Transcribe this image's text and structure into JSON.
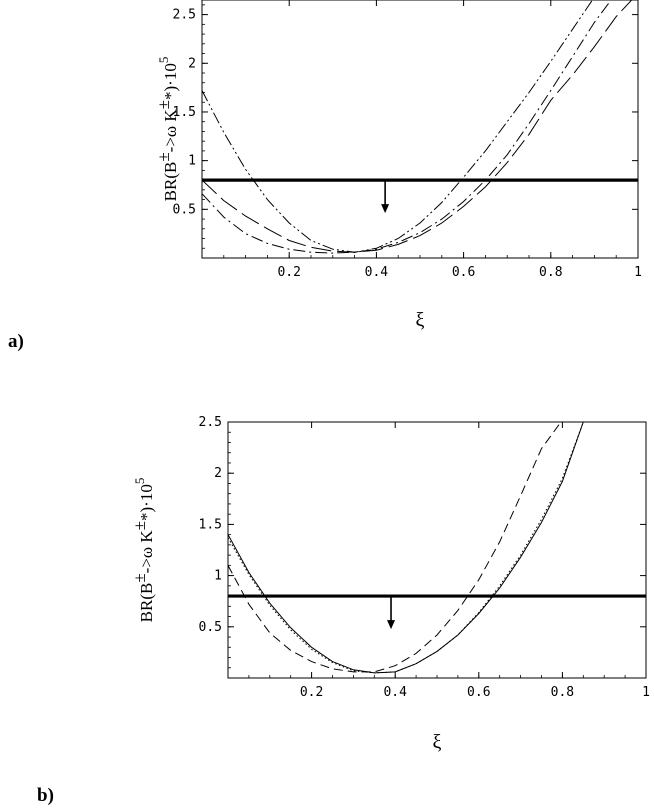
{
  "chart_data": [
    {
      "type": "line",
      "panel_label": "a)",
      "xlabel": "ξ",
      "ylabel": "BR(B±->ω K±*)·10⁵",
      "ylabel_parts": {
        "main": "BR(B",
        "pm1": "±",
        "mid": "->ω K",
        "pm2": "±",
        "tail": "*)·10",
        "exp": "5"
      },
      "xlim": [
        0.0,
        1.0
      ],
      "ylim": [
        0.0,
        2.65
      ],
      "xticks": [
        "0.2",
        "0.4",
        "0.6",
        "0.8",
        "1"
      ],
      "yticks": [
        "0.5",
        "1",
        "1.5",
        "2",
        "2.5"
      ],
      "limit_line": 0.8,
      "arrow_x": 0.42,
      "series": [
        {
          "style": "long-dash",
          "x": [
            0.0,
            0.05,
            0.1,
            0.15,
            0.2,
            0.25,
            0.3,
            0.35,
            0.4,
            0.45,
            0.5,
            0.55,
            0.6,
            0.65,
            0.7,
            0.75,
            0.8,
            0.85,
            0.9,
            0.95,
            1.0
          ],
          "y": [
            0.8,
            0.59,
            0.43,
            0.3,
            0.18,
            0.11,
            0.07,
            0.06,
            0.08,
            0.14,
            0.23,
            0.36,
            0.53,
            0.73,
            0.98,
            1.27,
            1.62,
            1.88,
            2.17,
            2.48,
            2.72
          ]
        },
        {
          "style": "dash-dot",
          "x": [
            0.0,
            0.05,
            0.1,
            0.15,
            0.2,
            0.25,
            0.3,
            0.35,
            0.4,
            0.45,
            0.5,
            0.55,
            0.6,
            0.65,
            0.7,
            0.75,
            0.8,
            0.85,
            0.9,
            0.95
          ],
          "y": [
            0.66,
            0.42,
            0.25,
            0.15,
            0.09,
            0.06,
            0.05,
            0.06,
            0.09,
            0.16,
            0.26,
            0.4,
            0.58,
            0.8,
            1.06,
            1.38,
            1.72,
            2.07,
            2.42,
            2.72
          ]
        },
        {
          "style": "dash-dot-dot",
          "x": [
            0.0,
            0.05,
            0.1,
            0.15,
            0.2,
            0.25,
            0.3,
            0.35,
            0.4,
            0.45,
            0.5,
            0.55,
            0.6,
            0.65,
            0.7,
            0.75,
            0.8,
            0.85,
            0.9,
            0.93
          ],
          "y": [
            1.72,
            1.29,
            0.91,
            0.6,
            0.36,
            0.18,
            0.09,
            0.06,
            0.1,
            0.2,
            0.36,
            0.57,
            0.83,
            1.1,
            1.4,
            1.7,
            2.02,
            2.35,
            2.68,
            2.72
          ]
        }
      ]
    },
    {
      "type": "line",
      "panel_label": "b)",
      "xlabel": "ξ",
      "ylabel": "BR(B±->ω K±*)·10⁵",
      "ylabel_parts": {
        "main": "BR(B",
        "pm1": "±",
        "mid": "->ω K",
        "pm2": "±",
        "tail": "*)·10",
        "exp": "5"
      },
      "xlim": [
        0.0,
        1.0
      ],
      "ylim": [
        0.0,
        2.5
      ],
      "xticks": [
        "0.2",
        "0.4",
        "0.6",
        "0.8",
        "1"
      ],
      "yticks": [
        "0.5",
        "1",
        "1.5",
        "2",
        "2.5"
      ],
      "limit_line": 0.8,
      "arrow_x": 0.39,
      "series": [
        {
          "style": "solid",
          "x": [
            0.0,
            0.05,
            0.1,
            0.15,
            0.2,
            0.25,
            0.3,
            0.35,
            0.4,
            0.45,
            0.5,
            0.55,
            0.6,
            0.65,
            0.7,
            0.75,
            0.8,
            0.85
          ],
          "y": [
            1.4,
            1.03,
            0.73,
            0.49,
            0.3,
            0.16,
            0.08,
            0.05,
            0.06,
            0.14,
            0.26,
            0.42,
            0.63,
            0.88,
            1.18,
            1.52,
            1.92,
            2.5
          ]
        },
        {
          "style": "dotted",
          "x": [
            0.0,
            0.05,
            0.1,
            0.15,
            0.2,
            0.25,
            0.3,
            0.35,
            0.4,
            0.45,
            0.5,
            0.55,
            0.6,
            0.65,
            0.7,
            0.75,
            0.8,
            0.85
          ],
          "y": [
            1.37,
            1.01,
            0.71,
            0.47,
            0.28,
            0.15,
            0.07,
            0.05,
            0.06,
            0.14,
            0.26,
            0.42,
            0.64,
            0.9,
            1.2,
            1.55,
            1.95,
            2.5
          ]
        },
        {
          "style": "dash",
          "x": [
            0.0,
            0.05,
            0.1,
            0.15,
            0.2,
            0.25,
            0.3,
            0.35,
            0.4,
            0.45,
            0.5,
            0.55,
            0.6,
            0.65,
            0.7,
            0.75,
            0.8
          ],
          "y": [
            1.1,
            0.72,
            0.44,
            0.27,
            0.16,
            0.09,
            0.06,
            0.06,
            0.12,
            0.24,
            0.42,
            0.66,
            0.96,
            1.33,
            1.78,
            2.24,
            2.52
          ]
        }
      ]
    }
  ]
}
